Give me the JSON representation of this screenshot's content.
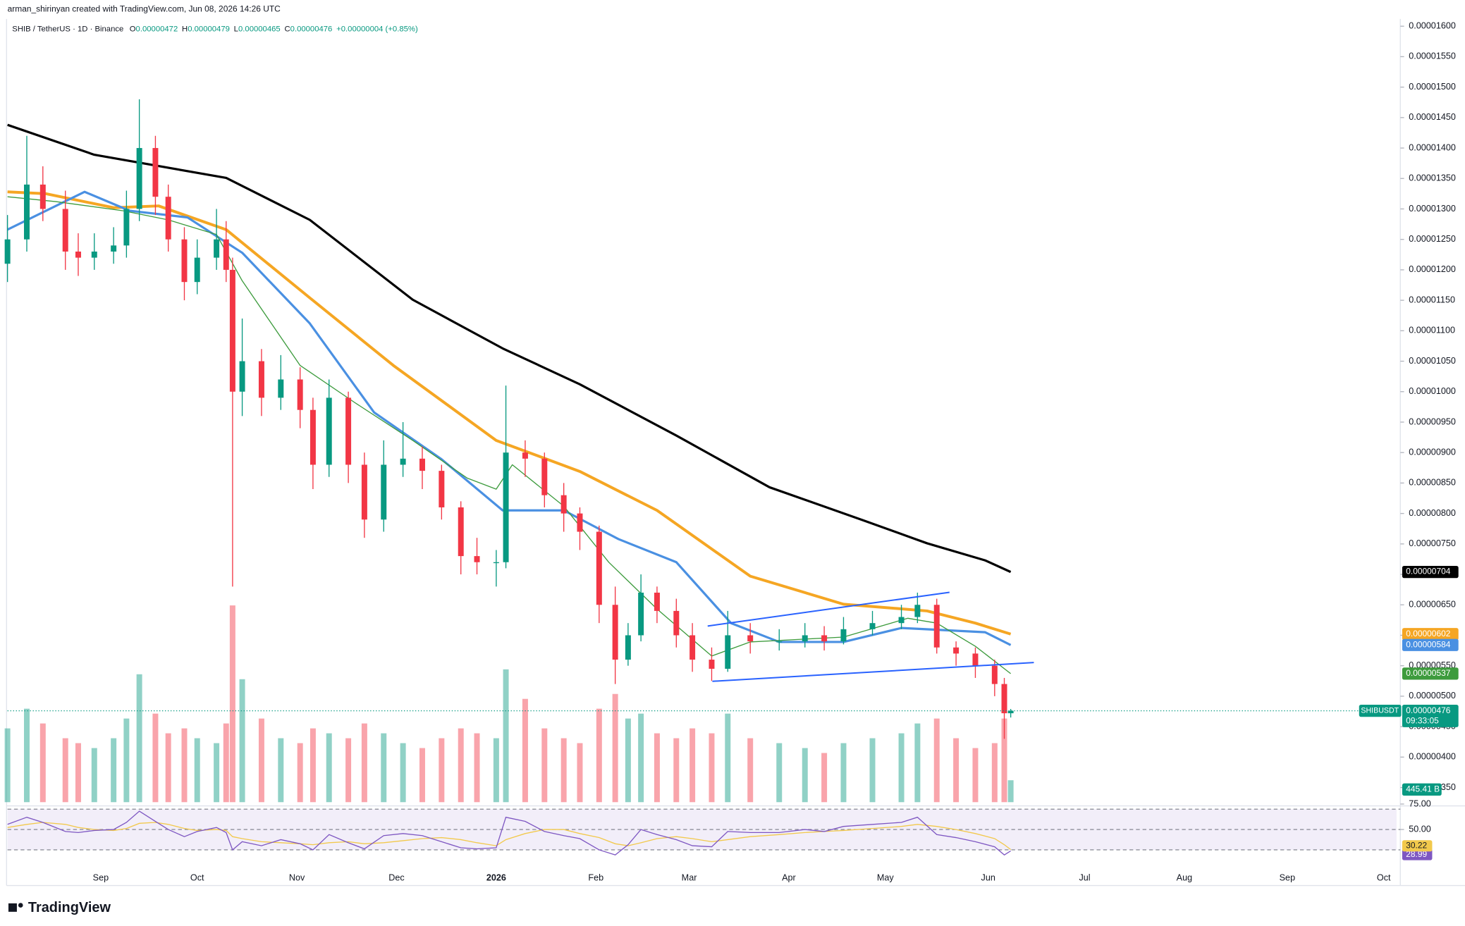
{
  "header": {
    "attribution": "arman_shirinyan created with TradingView.com, Jun 08, 2026 14:26 UTC",
    "symbol": "SHIB / TetherUS · 1D · Binance",
    "ohlc": [
      {
        "key": "O",
        "value": "0.00000472"
      },
      {
        "key": "H",
        "value": "0.00000479"
      },
      {
        "key": "L",
        "value": "0.00000465"
      },
      {
        "key": "C",
        "value": "0.00000476"
      }
    ],
    "change": "+0.00000004 (+0.85%)"
  },
  "chart_data": [
    {
      "type": "candlestick",
      "x": [
        0,
        6,
        11,
        18,
        22,
        27,
        33,
        37,
        41,
        46,
        50,
        55,
        59,
        65,
        68,
        70,
        73,
        79,
        85,
        91,
        95,
        100,
        106,
        111,
        117,
        123,
        129,
        135,
        141,
        146,
        152,
        155,
        161,
        167,
        173,
        178,
        184,
        189,
        193,
        197,
        202,
        208,
        213,
        219,
        224,
        231,
        240,
        248,
        254,
        260,
        269,
        278,
        283,
        289,
        295,
        301,
        307,
        310,
        312
      ],
      "open": [
        1.21e-05,
        1.25e-05,
        1.34e-05,
        1.3e-05,
        1.23e-05,
        1.22e-05,
        1.23e-05,
        1.24e-05,
        1.3e-05,
        1.4e-05,
        1.32e-05,
        1.25e-05,
        1.18e-05,
        1.22e-05,
        1.25e-05,
        1.2e-05,
        1e-05,
        1.05e-05,
        9.9e-06,
        1.02e-05,
        9.7e-06,
        8.8e-06,
        9.9e-06,
        8.8e-06,
        7.9e-06,
        8.8e-06,
        8.9e-06,
        8.7e-06,
        8.1e-06,
        7.3e-06,
        7.2e-06,
        7.2e-06,
        9e-06,
        8.9e-06,
        8.3e-06,
        8e-06,
        7.7e-06,
        6.5e-06,
        5.6e-06,
        6e-06,
        6.7e-06,
        6.4e-06,
        6e-06,
        5.6e-06,
        5.45e-06,
        6e-06,
        5.9e-06,
        5.9e-06,
        6e-06,
        5.9e-06,
        6.1e-06,
        6.2e-06,
        6.3e-06,
        6.5e-06,
        5.8e-06,
        5.7e-06,
        5.5e-06,
        5.2e-06,
        4.72e-06
      ],
      "high": [
        1.29e-05,
        1.42e-05,
        1.37e-05,
        1.33e-05,
        1.26e-05,
        1.26e-05,
        1.27e-05,
        1.33e-05,
        1.48e-05,
        1.42e-05,
        1.34e-05,
        1.27e-05,
        1.25e-05,
        1.3e-05,
        1.28e-05,
        1.22e-05,
        1.12e-05,
        1.07e-05,
        1.06e-05,
        1.04e-05,
        9.9e-06,
        1.02e-05,
        1e-05,
        9e-06,
        9.2e-06,
        9.5e-06,
        9.1e-06,
        8.8e-06,
        8.2e-06,
        7.6e-06,
        7.4e-06,
        1.01e-05,
        9.2e-06,
        9e-06,
        8.5e-06,
        8.1e-06,
        7.8e-06,
        6.8e-06,
        6.2e-06,
        7e-06,
        6.8e-06,
        6.6e-06,
        6.2e-06,
        5.8e-06,
        6.4e-06,
        6.2e-06,
        6.1e-06,
        6.2e-06,
        6.15e-06,
        6.3e-06,
        6.4e-06,
        6.5e-06,
        6.7e-06,
        6.6e-06,
        5.9e-06,
        5.8e-06,
        5.6e-06,
        5.3e-06,
        4.79e-06
      ],
      "low": [
        1.18e-05,
        1.23e-05,
        1.28e-05,
        1.2e-05,
        1.19e-05,
        1.2e-05,
        1.21e-05,
        1.22e-05,
        1.28e-05,
        1.29e-05,
        1.23e-05,
        1.15e-05,
        1.16e-05,
        1.2e-05,
        1.18e-05,
        6.8e-06,
        9.6e-06,
        9.6e-06,
        9.7e-06,
        9.4e-06,
        8.4e-06,
        8.6e-06,
        8.5e-06,
        7.6e-06,
        7.7e-06,
        8.6e-06,
        8.4e-06,
        7.9e-06,
        7e-06,
        7e-06,
        6.8e-06,
        7.1e-06,
        8.6e-06,
        8.1e-06,
        7.7e-06,
        7.4e-06,
        6.2e-06,
        5.2e-06,
        5.5e-06,
        5.9e-06,
        6.2e-06,
        5.8e-06,
        5.4e-06,
        5.25e-06,
        5.4e-06,
        5.7e-06,
        5.75e-06,
        5.8e-06,
        5.75e-06,
        5.85e-06,
        6e-06,
        6.1e-06,
        6.2e-06,
        5.7e-06,
        5.5e-06,
        5.3e-06,
        5e-06,
        4.3e-06,
        4.65e-06
      ],
      "close": [
        1.25e-05,
        1.34e-05,
        1.3e-05,
        1.23e-05,
        1.22e-05,
        1.23e-05,
        1.24e-05,
        1.3e-05,
        1.4e-05,
        1.32e-05,
        1.25e-05,
        1.18e-05,
        1.22e-05,
        1.25e-05,
        1.2e-05,
        1e-05,
        1.05e-05,
        9.9e-06,
        1.02e-05,
        9.7e-06,
        8.8e-06,
        9.9e-06,
        8.8e-06,
        7.9e-06,
        8.8e-06,
        8.9e-06,
        8.7e-06,
        8.1e-06,
        7.3e-06,
        7.2e-06,
        7.2e-06,
        9e-06,
        8.9e-06,
        8.3e-06,
        8e-06,
        7.7e-06,
        6.5e-06,
        5.6e-06,
        6e-06,
        6.7e-06,
        6.4e-06,
        6e-06,
        5.6e-06,
        5.45e-06,
        6e-06,
        5.9e-06,
        5.9e-06,
        6e-06,
        5.9e-06,
        6.1e-06,
        6.2e-06,
        6.3e-06,
        6.5e-06,
        5.8e-06,
        5.7e-06,
        5.5e-06,
        5.2e-06,
        4.72e-06,
        4.76e-06
      ],
      "volume": [
        1500,
        1900,
        1600,
        1300,
        1200,
        1100,
        1300,
        1700,
        2600,
        1800,
        1400,
        1500,
        1300,
        1200,
        1600,
        4000,
        2500,
        1700,
        1300,
        1200,
        1500,
        1400,
        1300,
        1600,
        1400,
        1200,
        1100,
        1300,
        1500,
        1400,
        1300,
        2700,
        2100,
        1500,
        1300,
        1200,
        1900,
        2200,
        1700,
        1800,
        1400,
        1300,
        1500,
        1400,
        1800,
        1300,
        1200,
        1100,
        1000,
        1200,
        1300,
        1400,
        1600,
        1700,
        1300,
        1100,
        1200,
        1700,
        445.41
      ],
      "volume_label": "445.41 B",
      "up_color": "#089981",
      "down_color": "#f23645",
      "xlim": [
        0,
        432
      ],
      "xticks": [
        {
          "value": 29,
          "label": "Sep"
        },
        {
          "value": 59,
          "label": "Oct"
        },
        {
          "value": 90,
          "label": "Nov"
        },
        {
          "value": 121,
          "label": "Dec"
        },
        {
          "value": 152,
          "label": "2026"
        },
        {
          "value": 183,
          "label": "Feb"
        },
        {
          "value": 212,
          "label": "Mar"
        },
        {
          "value": 243,
          "label": "Apr"
        },
        {
          "value": 273,
          "label": "May"
        },
        {
          "value": 305,
          "label": "Jun"
        },
        {
          "value": 335,
          "label": "Jul"
        },
        {
          "value": 366,
          "label": "Aug"
        },
        {
          "value": 398,
          "label": "Sep"
        },
        {
          "value": 428,
          "label": "Oct"
        }
      ],
      "ylim": [
        3.26e-06,
        1.612e-05
      ],
      "yticks": [
        {
          "value": 3.5e-06,
          "label": "0.00000350"
        },
        {
          "value": 4e-06,
          "label": "0.00000400"
        },
        {
          "value": 4.5e-06,
          "label": "0.00000450"
        },
        {
          "value": 5e-06,
          "label": "0.00000500"
        },
        {
          "value": 5.5e-06,
          "label": "0.00000550"
        },
        {
          "value": 6e-06,
          "label": "0.00000600"
        },
        {
          "value": 6.5e-06,
          "label": "0.00000650"
        },
        {
          "value": 7e-06,
          "label": "0.00000700"
        },
        {
          "value": 7.5e-06,
          "label": "0.00000750"
        },
        {
          "value": 8e-06,
          "label": "0.00000800"
        },
        {
          "value": 8.5e-06,
          "label": "0.00000850"
        },
        {
          "value": 9e-06,
          "label": "0.00000900"
        },
        {
          "value": 9.5e-06,
          "label": "0.00000950"
        },
        {
          "value": 1e-05,
          "label": "0.00001000"
        },
        {
          "value": 1.05e-05,
          "label": "0.00001050"
        },
        {
          "value": 1.1e-05,
          "label": "0.00001100"
        },
        {
          "value": 1.15e-05,
          "label": "0.00001150"
        },
        {
          "value": 1.2e-05,
          "label": "0.00001200"
        },
        {
          "value": 1.25e-05,
          "label": "0.00001250"
        },
        {
          "value": 1.3e-05,
          "label": "0.00001300"
        },
        {
          "value": 1.35e-05,
          "label": "0.00001350"
        },
        {
          "value": 1.4e-05,
          "label": "0.00001400"
        },
        {
          "value": 1.45e-05,
          "label": "0.00001450"
        },
        {
          "value": 1.5e-05,
          "label": "0.00001500"
        },
        {
          "value": 1.55e-05,
          "label": "0.00001550"
        },
        {
          "value": 1.6e-05,
          "label": "0.00001600"
        }
      ],
      "last_price": {
        "symbol": "SHIBUSDT",
        "label": "0.00000476",
        "countdown": "09:33:05"
      },
      "series": [
        {
          "color": "#000000",
          "width": 2.4,
          "label": "0.00000704",
          "x": [
            0,
            27,
            68,
            94,
            126,
            154,
            178,
            208,
            237,
            266,
            286,
            304,
            312
          ],
          "values": [
            1.438e-05,
            1.389e-05,
            1.351e-05,
            1.282e-05,
            1.151e-05,
            1.071e-05,
            1.012e-05,
            9.28e-06,
            8.43e-06,
            7.89e-06,
            7.51e-06,
            7.23e-06,
            7.04e-06
          ]
        },
        {
          "color": "#f5a623",
          "width": 3,
          "label": "0.00000602",
          "x": [
            0,
            12,
            33,
            47,
            68,
            94,
            120,
            152,
            178,
            202,
            231,
            260,
            286,
            301,
            312
          ],
          "values": [
            1.328e-05,
            1.325e-05,
            1.302e-05,
            1.305e-05,
            1.266e-05,
            1.154e-05,
            1.043e-05,
            9.2e-06,
            8.69e-06,
            8.05e-06,
            6.97e-06,
            6.51e-06,
            6.4e-06,
            6.2e-06,
            6.02e-06
          ]
        },
        {
          "color": "#4a90e2",
          "width": 2.4,
          "label": "0.00000584",
          "x": [
            0,
            24,
            38,
            56,
            73,
            94,
            114,
            135,
            154,
            173,
            190,
            208,
            225,
            240,
            260,
            278,
            289,
            304,
            312
          ],
          "values": [
            1.266e-05,
            1.328e-05,
            1.297e-05,
            1.286e-05,
            1.228e-05,
            1.112e-05,
            9.66e-06,
            8.89e-06,
            8.05e-06,
            8.05e-06,
            7.58e-06,
            7.2e-06,
            6.2e-06,
            5.89e-06,
            5.89e-06,
            6.12e-06,
            6.09e-06,
            6.05e-06,
            5.84e-06
          ]
        },
        {
          "color": "#3d9b3d",
          "width": 1,
          "label": "0.00000537",
          "x": [
            0,
            15,
            36,
            50,
            65,
            73,
            91,
            108,
            126,
            143,
            152,
            157,
            173,
            187,
            202,
            219,
            231,
            260,
            280,
            289,
            301,
            312
          ],
          "values": [
            1.32e-05,
            1.312e-05,
            1.297e-05,
            1.282e-05,
            1.258e-05,
            1.182e-05,
            1.043e-05,
            9.82e-06,
            9.2e-06,
            8.58e-06,
            8.4e-06,
            8.8e-06,
            8.12e-06,
            7.2e-06,
            6.43e-06,
            5.66e-06,
            5.89e-06,
            5.97e-06,
            6.28e-06,
            6.2e-06,
            5.82e-06,
            5.37e-06
          ]
        }
      ]
    },
    {
      "type": "line",
      "x": [
        0,
        6,
        11,
        18,
        22,
        27,
        33,
        37,
        41,
        46,
        50,
        55,
        59,
        65,
        68,
        70,
        73,
        79,
        85,
        91,
        95,
        100,
        106,
        111,
        117,
        123,
        129,
        135,
        141,
        146,
        152,
        155,
        161,
        167,
        173,
        178,
        184,
        189,
        193,
        197,
        202,
        208,
        213,
        219,
        224,
        231,
        240,
        248,
        254,
        260,
        269,
        278,
        283,
        289,
        295,
        301,
        307,
        310,
        312
      ],
      "xlim": [
        0,
        432
      ],
      "ylim": [
        17,
        75
      ],
      "yticks": [
        {
          "value": 75,
          "label": "75.00"
        },
        {
          "value": 50,
          "label": "50.00"
        }
      ],
      "levels": [
        70,
        50,
        30
      ],
      "band_color": "#7e57c2",
      "series": [
        {
          "color": "#7e57c2",
          "values": [
            55,
            62,
            57,
            48,
            47,
            49,
            50,
            57,
            68,
            58,
            50,
            43,
            48,
            52,
            47,
            30,
            38,
            34,
            40,
            36,
            30,
            45,
            37,
            31,
            44,
            46,
            44,
            38,
            32,
            31,
            32,
            62,
            58,
            48,
            44,
            41,
            30,
            25,
            35,
            50,
            45,
            40,
            34,
            33,
            48,
            47,
            47,
            50,
            48,
            53,
            55,
            57,
            62,
            45,
            42,
            38,
            33,
            25,
            28.99
          ]
        },
        {
          "color": "#f2c94c",
          "values": [
            52,
            55,
            57,
            55,
            52,
            50,
            49,
            51,
            56,
            57,
            55,
            51,
            49,
            50,
            49,
            43,
            41,
            38,
            37,
            36,
            35,
            37,
            38,
            36,
            37,
            39,
            41,
            42,
            40,
            37,
            34,
            40,
            46,
            50,
            50,
            46,
            42,
            36,
            34,
            37,
            41,
            43,
            41,
            38,
            40,
            43,
            45,
            47,
            48,
            49,
            51,
            53,
            55,
            53,
            50,
            46,
            41,
            35,
            30.22
          ]
        }
      ]
    }
  ],
  "footer": {
    "logo": "TradingView"
  }
}
